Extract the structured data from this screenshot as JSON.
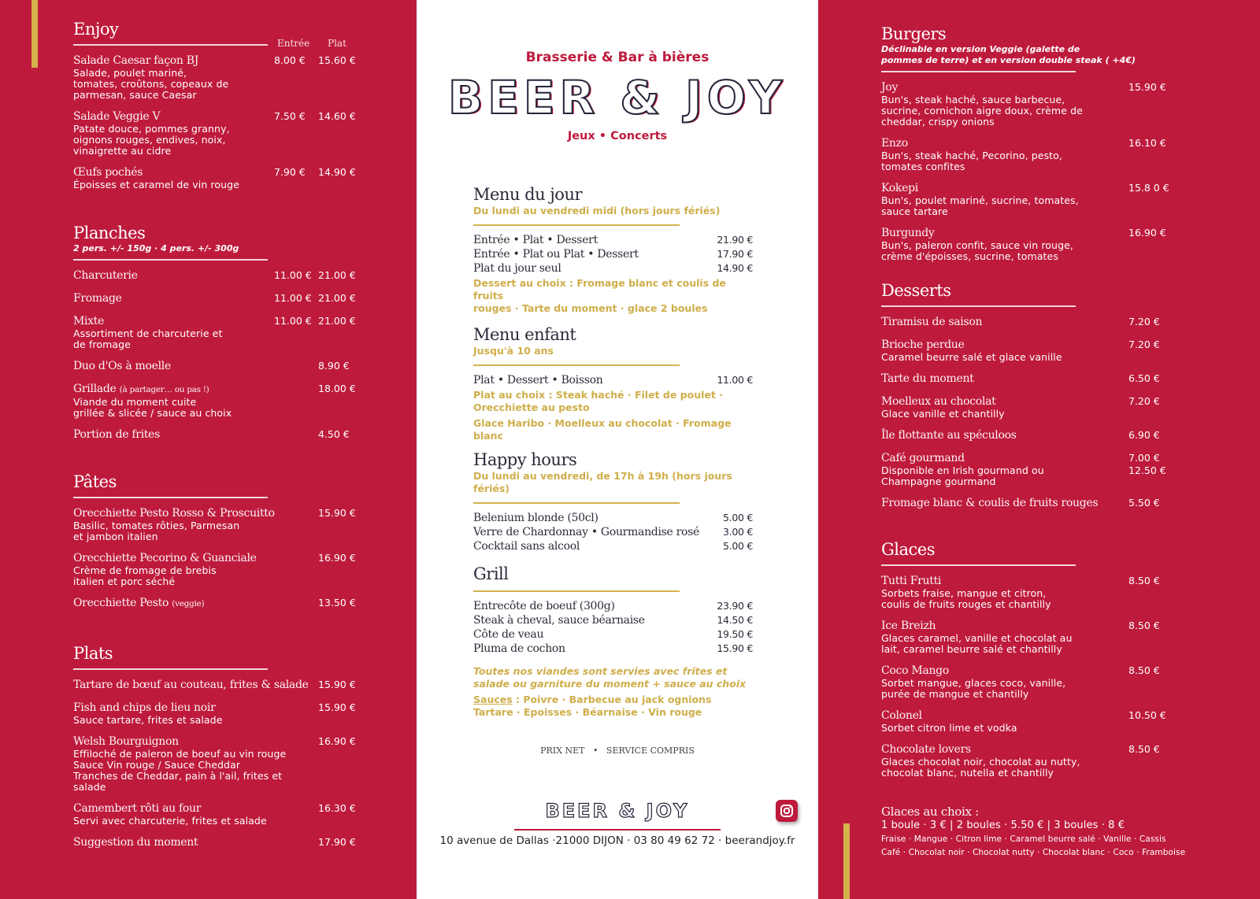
{
  "left": {
    "col_headers": [
      "Entrée",
      "Plat"
    ],
    "sections": [
      {
        "title": "Enjoy",
        "items": [
          {
            "name": "Salade Caesar façon BJ",
            "desc": "Salade, poulet mariné,\ntomates, croûtons, copeaux de\nparmesan, sauce Caesar",
            "prices": [
              "8.00 €",
              "15.60 €"
            ]
          },
          {
            "name": "Salade Veggie V",
            "desc": "Patate douce, pommes granny,\noignons rouges, endives, noix,\nvinaigrette au cidre",
            "prices": [
              "7.50 €",
              "14.60 €"
            ]
          },
          {
            "name": "Œufs pochés",
            "desc": "Époisses et caramel de vin rouge",
            "prices": [
              "7.90 €",
              "14.90 €"
            ]
          }
        ]
      },
      {
        "title": "Planches",
        "subtitle": "2 pers. +/- 150g · 4 pers. +/- 300g",
        "items": [
          {
            "name": "Charcuterie",
            "prices": [
              "11.00 €",
              "21.00 €"
            ]
          },
          {
            "name": "Fromage",
            "prices": [
              "11.00 €",
              "21.00 €"
            ]
          },
          {
            "name": "Mixte",
            "desc": "Assortiment de charcuterie et\nde fromage",
            "prices": [
              "11.00 €",
              "21.00 €"
            ]
          },
          {
            "name": "Duo d'Os à moelle",
            "prices": [
              "",
              "8.90 €"
            ]
          },
          {
            "name": "Grillade",
            "suffix": "(à partager… ou pas !)",
            "desc": "Viande du moment cuite\ngrillée & slicée / sauce au choix",
            "prices": [
              "",
              "18.00 €"
            ]
          },
          {
            "name": "Portion de frites",
            "prices": [
              "",
              "4.50 €"
            ]
          }
        ]
      },
      {
        "title": "Pâtes",
        "items": [
          {
            "name": "Orecchiette Pesto Rosso & Proscuitto",
            "desc": "Basilic, tomates rôties, Parmesan\net jambon italien",
            "prices": [
              "",
              "15.90 €"
            ]
          },
          {
            "name": "Orecchiette Pecorino & Guanciale",
            "desc": "Crème de fromage de brebis\nitalien et porc séché",
            "prices": [
              "",
              "16.90 €"
            ]
          },
          {
            "name": "Orecchiette Pesto",
            "suffix": "(veggie)",
            "prices": [
              "",
              "13.50 €"
            ]
          }
        ]
      },
      {
        "title": "Plats",
        "items": [
          {
            "name": "Tartare de bœuf au couteau, frites & salade",
            "prices": [
              "",
              "15.90 €"
            ]
          },
          {
            "name": "Fish and chips de lieu noir",
            "desc": "Sauce tartare, frites et salade",
            "prices": [
              "",
              "15.90 €"
            ]
          },
          {
            "name": "Welsh Bourguignon",
            "desc": "Effiloché de paleron de boeuf au vin rouge\nSauce Vin rouge / Sauce Cheddar\nTranches de Cheddar, pain à l'ail, frites et\nsalade",
            "prices": [
              "",
              "16.90 €"
            ]
          },
          {
            "name": "Camembert rôti au four",
            "desc": "Servi avec charcuterie, frites et salade",
            "prices": [
              "",
              "16.30 €"
            ]
          },
          {
            "name": "Suggestion du moment",
            "prices": [
              "",
              "17.90 €"
            ]
          }
        ]
      }
    ]
  },
  "center": {
    "tagline": "Brasserie & Bar à bières",
    "logo": "BEER & JOY",
    "subtag": "Jeux • Concerts",
    "sections": [
      {
        "title": "Menu du jour",
        "subtitle": "Du lundi au vendredi midi (hors jours fériés)",
        "items": [
          {
            "name": "Entrée • Plat • Dessert",
            "price": "21.90 €"
          },
          {
            "name": "Entrée • Plat ou Plat • Dessert",
            "price": "17.90 €"
          },
          {
            "name": "Plat du jour seul",
            "price": "14.90 €"
          }
        ],
        "notes": [
          "Dessert au choix : Fromage blanc et coulis de fruits\nrouges · Tarte du moment · glace 2 boules"
        ]
      },
      {
        "title": "Menu enfant",
        "subtitle": "Jusqu'à 10 ans",
        "items": [
          {
            "name": "Plat • Dessert • Boisson",
            "price": "11.00 €"
          }
        ],
        "notes": [
          "Plat au choix : Steak haché · Filet de poulet ·\nOrecchiette au pesto",
          "Glace Haribo · Moelleux au chocolat · Fromage blanc"
        ]
      },
      {
        "title": "Happy hours",
        "subtitle": "Du lundi au vendredi, de 17h à 19h (hors jours fériés)",
        "items": [
          {
            "name": "Belenium blonde (50cl)",
            "price": "5.00 €"
          },
          {
            "name": "Verre de Chardonnay • Gourmandise rosé",
            "price": "3.00 €"
          },
          {
            "name": "Cocktail sans alcool",
            "price": "5.00 €"
          }
        ]
      },
      {
        "title": "Grill",
        "items": [
          {
            "name": "Entrecôte de boeuf (300g)",
            "price": "23.90 €"
          },
          {
            "name": "Steak à cheval, sauce béarnaise",
            "price": "14.50 €"
          },
          {
            "name": "Côte de veau",
            "price": "19.50 €"
          },
          {
            "name": "Pluma de cochon",
            "price": "15.90 €"
          }
        ],
        "italic_note": "Toutes nos viandes sont servies avec frites et\nsalade ou garniture du moment + sauce au choix",
        "sauces_label": "Sauces",
        "sauces": " : Poivre · Barbecue au jack ognions\nTartare · Epoisses  · Béarnaise  · Vin rouge"
      }
    ],
    "prix_net": "PRIX NET   •   SERVICE COMPRIS",
    "footer_logo": "BEER & JOY",
    "address": "10 avenue de Dallas ·21000 DIJON · 03 80 49 62 72 · beerandjoy.fr",
    "social_icon": "instagram-icon"
  },
  "right": {
    "sections": [
      {
        "title": "Burgers",
        "subtitle": "Déclinable en version Veggie (galette de\npommes de terre) et en version double steak ( +4€)",
        "items": [
          {
            "name": "Joy",
            "desc": "Bun's, steak haché, sauce barbecue,\nsucrine, cornichon aigre doux, crème de\ncheddar, crispy onions",
            "prices": [
              "15.90 €"
            ]
          },
          {
            "name": "Enzo",
            "desc": "Bun's, steak haché, Pecorino, pesto,\ntomates confites",
            "prices": [
              "16.10 €"
            ]
          },
          {
            "name": "Kokepi",
            "desc": "Bun's, poulet mariné, sucrine, tomates,\nsauce tartare",
            "prices": [
              "15.8 0 €"
            ]
          },
          {
            "name": "Burgundy",
            "desc": "Bun's, paleron confit, sauce vin rouge,\ncrème d'époisses, sucrine, tomates",
            "prices": [
              "16.90 €"
            ]
          }
        ]
      },
      {
        "title": "Desserts",
        "items": [
          {
            "name": "Tiramisu de saison",
            "prices": [
              "7.20 €"
            ]
          },
          {
            "name": "Brioche perdue",
            "desc": "Caramel beurre salé et glace vanille",
            "prices": [
              "7.20 €"
            ]
          },
          {
            "name": "Tarte du moment",
            "prices": [
              "6.50 €"
            ]
          },
          {
            "name": "Moelleux au chocolat",
            "desc": "Glace vanille et chantilly",
            "prices": [
              "7.20 €"
            ]
          },
          {
            "name": "Île flottante au spéculoos",
            "prices": [
              "6.90 €"
            ]
          },
          {
            "name": "Café gourmand",
            "desc": "Disponible en Irish gourmand ou\nChampagne gourmand",
            "prices": [
              "7.00 €\n12.50 €"
            ]
          },
          {
            "name": "Fromage blanc & coulis de fruits rouges",
            "prices": [
              "5.50 €"
            ]
          }
        ]
      },
      {
        "title": "Glaces",
        "items": [
          {
            "name": "Tutti Frutti",
            "desc": "Sorbets fraise, mangue et citron,\ncoulis de fruits rouges et chantilly",
            "prices": [
              "8.50 €"
            ]
          },
          {
            "name": "Ice Breizh",
            "desc": "Glaces caramel, vanille et chocolat au\nlait, caramel beurre salé et chantilly",
            "prices": [
              "8.50 €"
            ]
          },
          {
            "name": "Coco Mango",
            "desc": "Sorbet mangue, glaces coco, vanille,\npurée de mangue et chantilly",
            "prices": [
              "8.50 €"
            ]
          },
          {
            "name": "Colonel",
            "desc": "Sorbet citron lime et vodka",
            "prices": [
              "10.50 €"
            ]
          },
          {
            "name": "Chocolate lovers",
            "desc": "Glaces chocolat noir, chocolat au nutty,\nchocolat blanc, nutella et chantilly",
            "prices": [
              "8.50 €"
            ]
          }
        ]
      }
    ],
    "glaces_choix": {
      "title": "Glaces au choix :",
      "prices": "1 boule · 3 € | 2 boules · 5.50 € | 3 boules · 8 €",
      "flavours_1": "Fraise · Mangue · Citron lime · Caramel beurre salé · Vanille · Cassis",
      "flavours_2": "Café · Chocolat noir · Chocolat nutty · Chocolat blanc · Coco · Framboise"
    }
  },
  "colors": {
    "brand_red": "#be1a3c",
    "gold": "#cfae4a",
    "navy": "#23263a"
  }
}
